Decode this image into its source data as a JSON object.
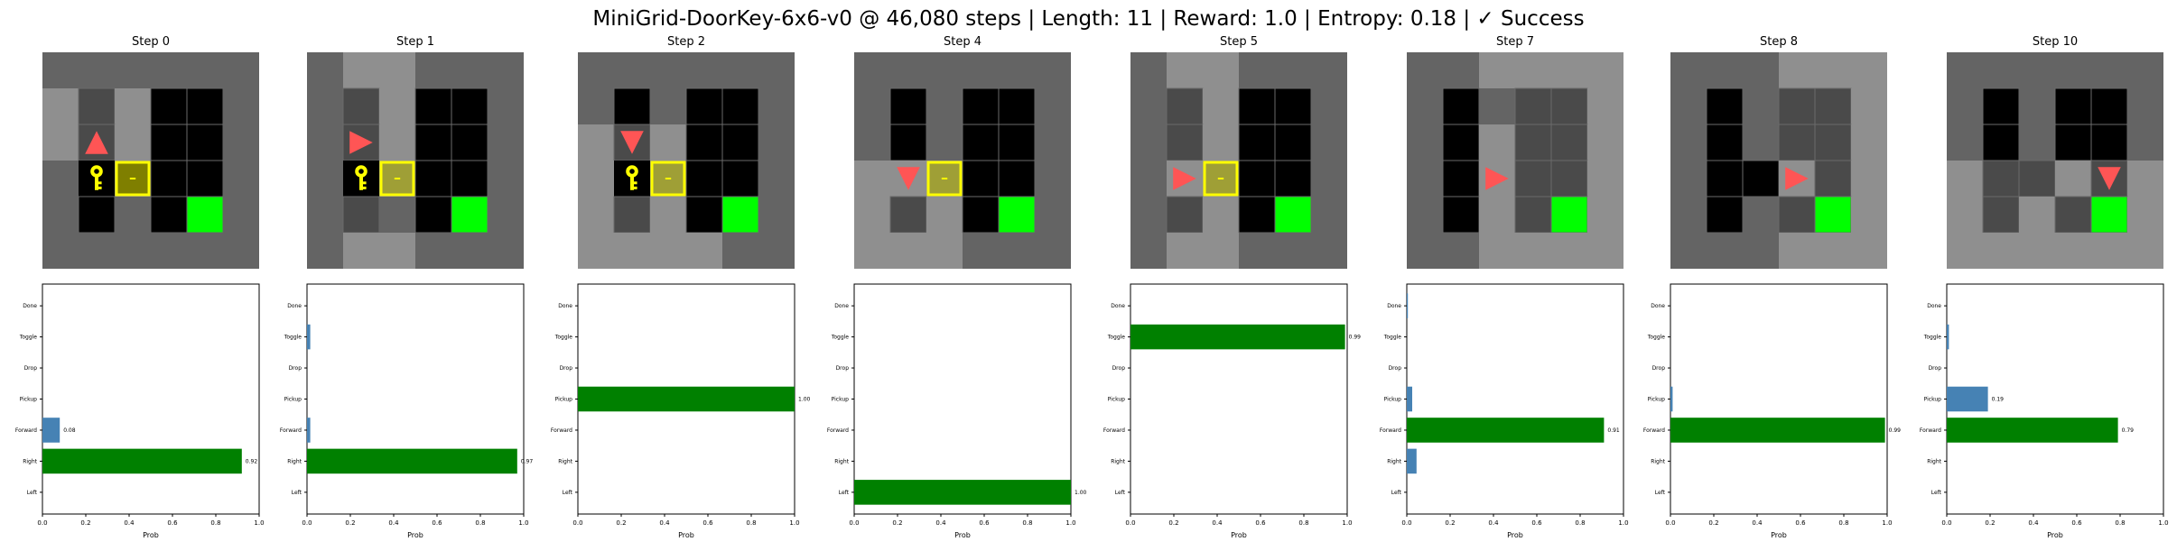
{
  "figure": {
    "suptitle": "MiniGrid-DoorKey-6x6-v0 @ 46,080 steps | Length: 11 | Reward: 1.0 | Entropy: 0.18 | ✓ Success",
    "action_labels": [
      "Left",
      "Right",
      "Forward",
      "Pickup",
      "Drop",
      "Toggle",
      "Done"
    ],
    "xlabel": "Prob",
    "xlim": [
      0,
      1.0
    ],
    "xticks": [
      "0.0",
      "0.2",
      "0.4",
      "0.6",
      "0.8",
      "1.0"
    ],
    "colors": {
      "chosen_bar": "#008000",
      "other_bar": "#4682b4",
      "floor_visible": "#8f8f8f",
      "floor_dark": "#646464",
      "wall": "#4a4a4a",
      "goal": "#00ff00",
      "door": "#ffff00",
      "key": "#ffff00",
      "agent": "#ff5555"
    },
    "frames_note": "Each frame shows a 6x6 egocentric render of the agent; grid contents and agent direction are read off the image.",
    "frames": [
      {
        "title": "Step 0",
        "agent_dir": "up"
      },
      {
        "title": "Step 1",
        "agent_dir": "right"
      },
      {
        "title": "Step 2",
        "agent_dir": "down"
      },
      {
        "title": "Step 4",
        "agent_dir": "down"
      },
      {
        "title": "Step 5",
        "agent_dir": "right"
      },
      {
        "title": "Step 7",
        "agent_dir": "right"
      },
      {
        "title": "Step 8",
        "agent_dir": "right"
      },
      {
        "title": "Step 10",
        "agent_dir": "down"
      }
    ]
  },
  "chart_data": [
    {
      "type": "bar",
      "title": "Step 0",
      "orientation": "horizontal",
      "categories": [
        "Left",
        "Right",
        "Forward",
        "Pickup",
        "Drop",
        "Toggle",
        "Done"
      ],
      "values": [
        0.0,
        0.92,
        0.08,
        0.0,
        0.0,
        0.0,
        0.0
      ],
      "chosen": "Right",
      "data_labels": {
        "Right": "0.92",
        "Forward": "0.08"
      },
      "xlabel": "Prob",
      "xlim": [
        0,
        1.0
      ]
    },
    {
      "type": "bar",
      "title": "Step 1",
      "orientation": "horizontal",
      "categories": [
        "Left",
        "Right",
        "Forward",
        "Pickup",
        "Drop",
        "Toggle",
        "Done"
      ],
      "values": [
        0.0,
        0.97,
        0.015,
        0.0,
        0.0,
        0.015,
        0.0
      ],
      "chosen": "Right",
      "data_labels": {
        "Right": "0.97"
      },
      "xlabel": "Prob",
      "xlim": [
        0,
        1.0
      ]
    },
    {
      "type": "bar",
      "title": "Step 2",
      "orientation": "horizontal",
      "categories": [
        "Left",
        "Right",
        "Forward",
        "Pickup",
        "Drop",
        "Toggle",
        "Done"
      ],
      "values": [
        0.0,
        0.0,
        0.0,
        1.0,
        0.0,
        0.0,
        0.0
      ],
      "chosen": "Pickup",
      "data_labels": {
        "Pickup": "1.00"
      },
      "xlabel": "Prob",
      "xlim": [
        0,
        1.0
      ]
    },
    {
      "type": "bar",
      "title": "Step 4",
      "orientation": "horizontal",
      "categories": [
        "Left",
        "Right",
        "Forward",
        "Pickup",
        "Drop",
        "Toggle",
        "Done"
      ],
      "values": [
        1.0,
        0.0,
        0.0,
        0.0,
        0.0,
        0.0,
        0.0
      ],
      "chosen": "Left",
      "data_labels": {
        "Left": "1.00"
      },
      "xlabel": "Prob",
      "xlim": [
        0,
        1.0
      ]
    },
    {
      "type": "bar",
      "title": "Step 5",
      "orientation": "horizontal",
      "categories": [
        "Left",
        "Right",
        "Forward",
        "Pickup",
        "Drop",
        "Toggle",
        "Done"
      ],
      "values": [
        0.0,
        0.0,
        0.0,
        0.0,
        0.0,
        0.99,
        0.0
      ],
      "chosen": "Toggle",
      "data_labels": {
        "Toggle": "0.99"
      },
      "xlabel": "Prob",
      "xlim": [
        0,
        1.0
      ]
    },
    {
      "type": "bar",
      "title": "Step 7",
      "orientation": "horizontal",
      "categories": [
        "Left",
        "Right",
        "Forward",
        "Pickup",
        "Drop",
        "Toggle",
        "Done"
      ],
      "values": [
        0.0,
        0.045,
        0.91,
        0.025,
        0.0,
        0.0,
        0.005
      ],
      "chosen": "Forward",
      "data_labels": {
        "Forward": "0.91"
      },
      "xlabel": "Prob",
      "xlim": [
        0,
        1.0
      ]
    },
    {
      "type": "bar",
      "title": "Step 8",
      "orientation": "horizontal",
      "categories": [
        "Left",
        "Right",
        "Forward",
        "Pickup",
        "Drop",
        "Toggle",
        "Done"
      ],
      "values": [
        0.0,
        0.0,
        0.99,
        0.01,
        0.0,
        0.0,
        0.0
      ],
      "chosen": "Forward",
      "data_labels": {
        "Forward": "0.99"
      },
      "xlabel": "Prob",
      "xlim": [
        0,
        1.0
      ]
    },
    {
      "type": "bar",
      "title": "Step 10",
      "orientation": "horizontal",
      "categories": [
        "Left",
        "Right",
        "Forward",
        "Pickup",
        "Drop",
        "Toggle",
        "Done"
      ],
      "values": [
        0.0,
        0.0,
        0.79,
        0.19,
        0.0,
        0.01,
        0.0
      ],
      "chosen": "Forward",
      "data_labels": {
        "Forward": "0.79",
        "Pickup": "0.19"
      },
      "xlabel": "Prob",
      "xlim": [
        0,
        1.0
      ]
    }
  ]
}
